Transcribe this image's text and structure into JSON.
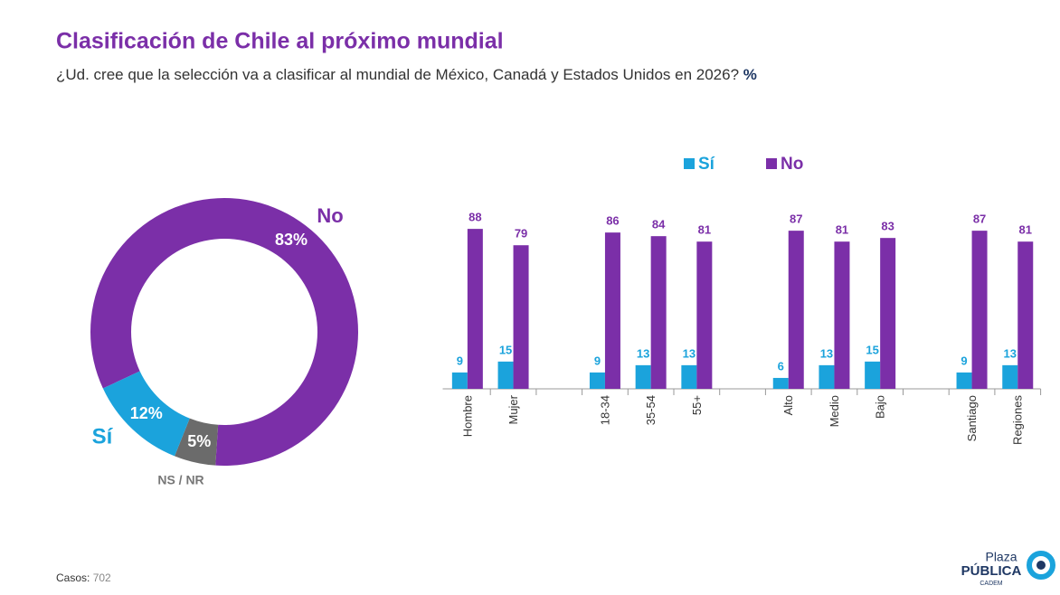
{
  "title": "Clasificación de Chile al próximo mundial",
  "subtitle": "¿Ud. cree que la selección va a clasificar al mundial de México, Canadá y Estados Unidos en 2026?",
  "subtitle_unit": "%",
  "chart_data": [
    {
      "type": "pie",
      "categories": [
        "No",
        "NS / NR",
        "Sí"
      ],
      "values": [
        83,
        5,
        12
      ],
      "value_labels": [
        "83%",
        "5%",
        "12%"
      ],
      "colors": [
        "#7b2fa8",
        "#6b6b6b",
        "#1ba3dc"
      ]
    },
    {
      "type": "bar",
      "categories": [
        "Hombre",
        "Mujer",
        null,
        "18-34",
        "35-54",
        "55+",
        null,
        "Alto",
        "Medio",
        "Bajo",
        null,
        "Santiago",
        "Regiones"
      ],
      "series": [
        {
          "name": "Sí",
          "color": "#1ba3dc",
          "values": [
            9,
            15,
            null,
            9,
            13,
            13,
            null,
            6,
            13,
            15,
            null,
            9,
            13
          ]
        },
        {
          "name": "No",
          "color": "#7b2fa8",
          "values": [
            88,
            79,
            null,
            86,
            84,
            81,
            null,
            87,
            81,
            83,
            null,
            87,
            81
          ]
        }
      ],
      "ylim": [
        0,
        100
      ]
    }
  ],
  "footer": {
    "cases_label": "Casos:",
    "cases": 702
  },
  "logo": {
    "top": "Plaza",
    "main": "PÚBLICA",
    "sub": "CADEM"
  }
}
